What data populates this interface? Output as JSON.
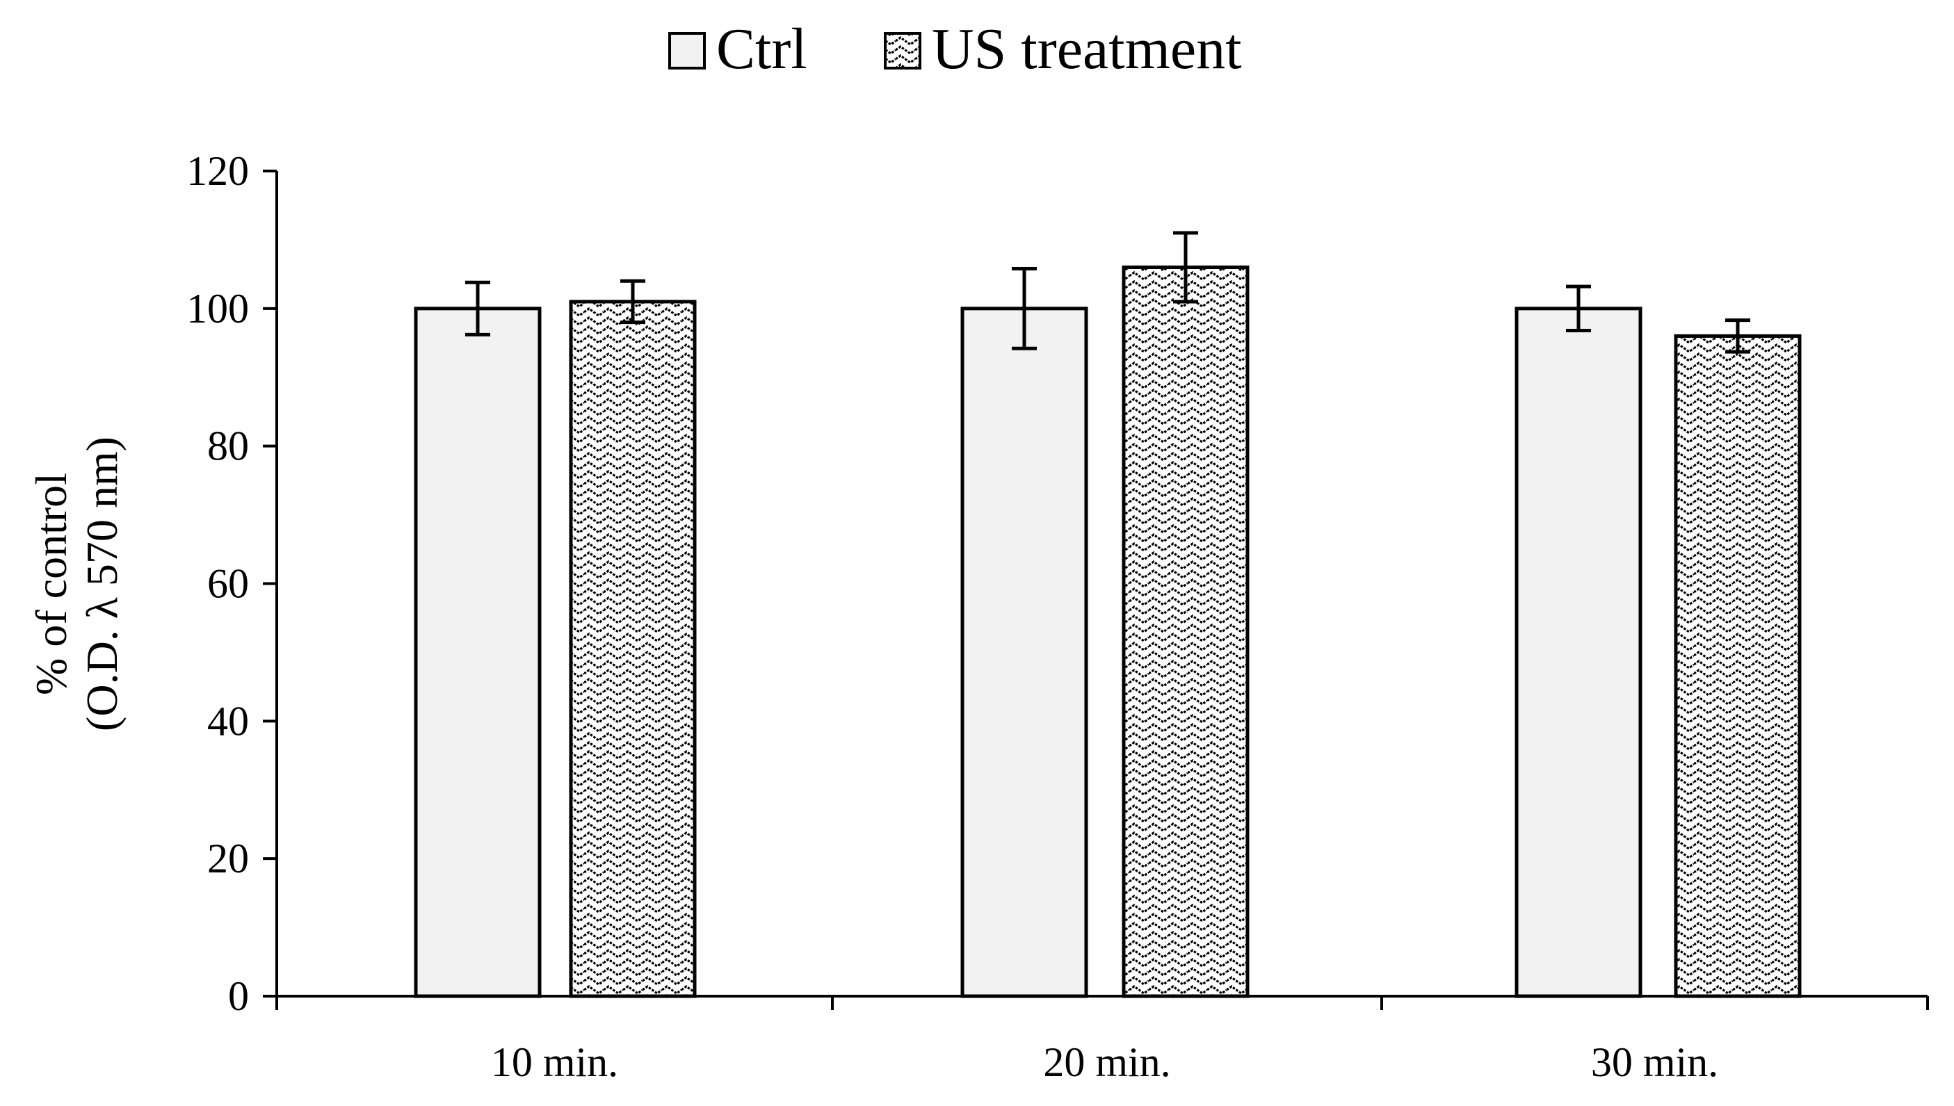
{
  "chart_data": {
    "type": "bar",
    "title": "",
    "xlabel": "",
    "ylabel_lines": [
      "% of control",
      "(O.D. λ 570 nm)"
    ],
    "ylim": [
      0,
      120
    ],
    "yticks": [
      0,
      20,
      40,
      60,
      80,
      100,
      120
    ],
    "categories": [
      "10 min.",
      "20 min.",
      "30 min."
    ],
    "series": [
      {
        "name": "Ctrl",
        "values": [
          100,
          100,
          100
        ],
        "errors": [
          3.8,
          5.8,
          3.2
        ],
        "pattern": "solid",
        "fill": "#f2f2f2"
      },
      {
        "name": "US treatment",
        "values": [
          101,
          106,
          96
        ],
        "errors": [
          3.0,
          5.0,
          2.3
        ],
        "pattern": "zigzag",
        "fill": "#ffffff"
      }
    ],
    "legend": "top",
    "grid": false
  }
}
